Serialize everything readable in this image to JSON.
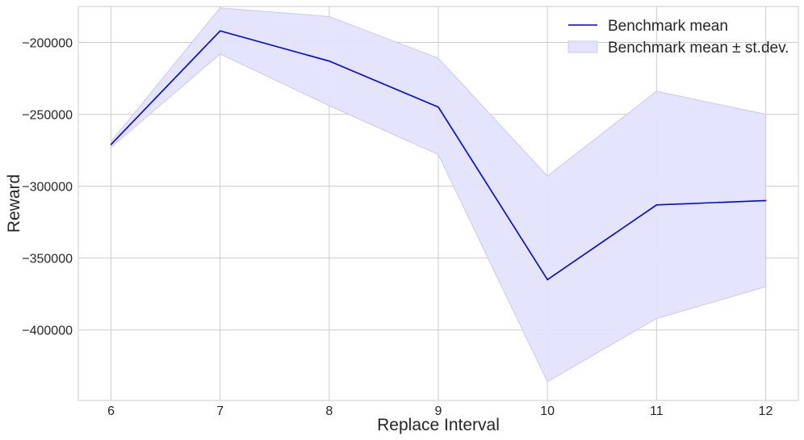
{
  "chart_data": {
    "type": "line",
    "xlabel": "Replace Interval",
    "ylabel": "Reward",
    "x": [
      6,
      7,
      8,
      9,
      10,
      11,
      12
    ],
    "series": [
      {
        "name": "Benchmark mean",
        "values": [
          -271000,
          -192000,
          -213000,
          -245000,
          -365000,
          -313000,
          -310000
        ]
      }
    ],
    "band": {
      "name": "Benchmark mean ± st.dev.",
      "lower": [
        -273000,
        -208000,
        -244000,
        -278000,
        -436000,
        -392000,
        -370000
      ],
      "upper": [
        -269000,
        -176000,
        -182000,
        -211000,
        -293000,
        -234000,
        -250000
      ]
    },
    "xticks": [
      6,
      7,
      8,
      9,
      10,
      11,
      12
    ],
    "yticks": [
      -400000,
      -350000,
      -300000,
      -250000,
      -200000
    ],
    "xlim": [
      5.7,
      12.3
    ],
    "ylim": [
      -449000,
      -175000
    ],
    "grid": true,
    "legend_position": "top-right",
    "colors": {
      "line": "#0000ee",
      "band_fill": "#e3e3fd",
      "band_edge": "#c8c8f4",
      "grid": "#cccccc",
      "frame": "#cccccc",
      "text": "#262626"
    }
  }
}
